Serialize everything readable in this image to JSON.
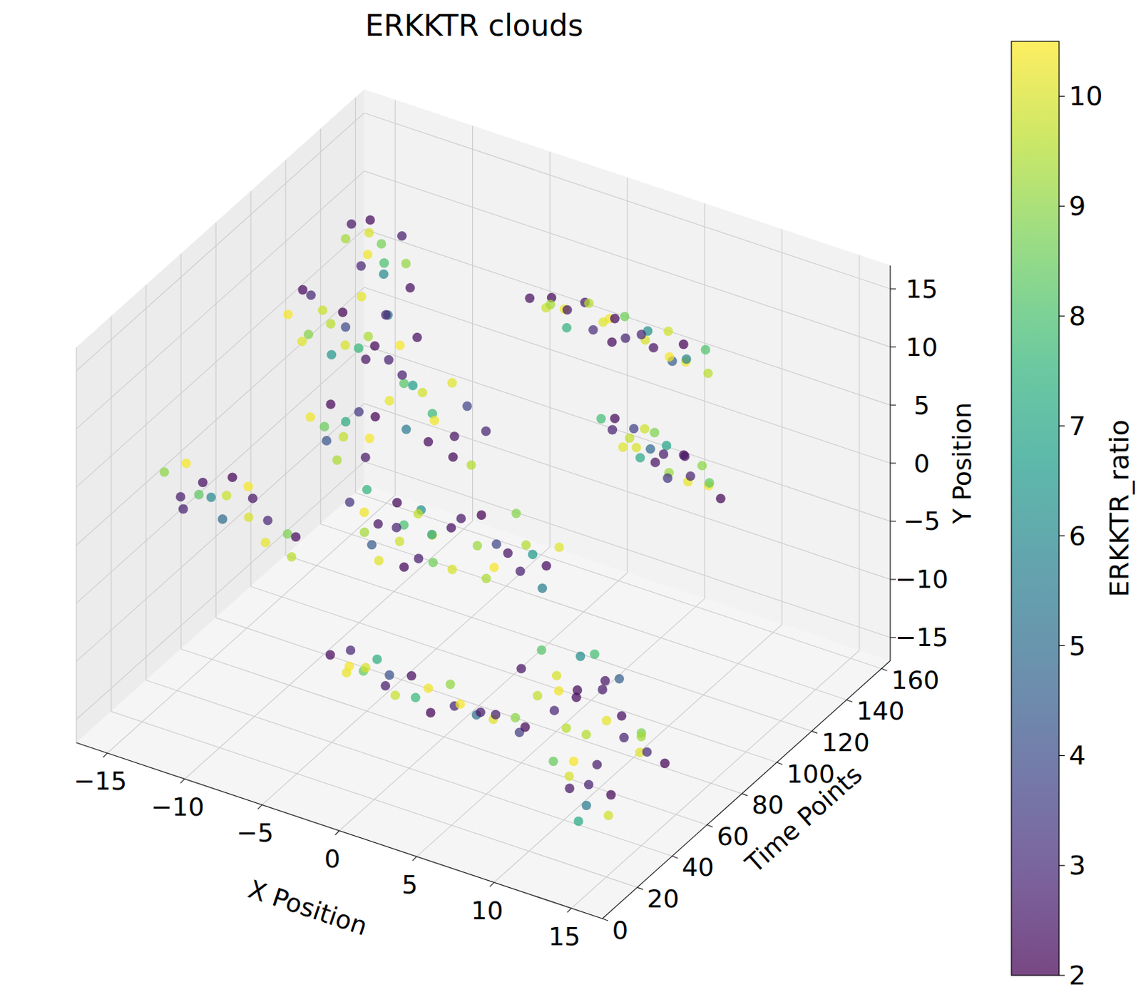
{
  "chart_data": {
    "type": "scatter3d",
    "title": "ERKKTR clouds",
    "x_label": "X Position",
    "y_label": "Time Points",
    "z_label": "Y Position",
    "grid": true,
    "xlim": [
      -17,
      17
    ],
    "ylim": [
      0,
      165
    ],
    "zlim": [
      -17,
      17
    ],
    "xticks": [
      {
        "value": -15,
        "label": "−15"
      },
      {
        "value": -10,
        "label": "−10"
      },
      {
        "value": -5,
        "label": "−5"
      },
      0,
      5,
      10,
      15
    ],
    "yticks": [
      0,
      20,
      40,
      60,
      80,
      100,
      120,
      140,
      160
    ],
    "zticks": [
      {
        "value": -15,
        "label": "−15"
      },
      {
        "value": -10,
        "label": "−10"
      },
      {
        "value": -5,
        "label": "−5"
      },
      0,
      5,
      10,
      15
    ],
    "x": [
      -1.0,
      -0.4,
      0.3,
      0.9,
      1.5,
      2.0,
      2.6,
      3.1,
      3.7,
      4.2,
      4.8,
      5.3,
      5.9,
      6.4,
      7.0,
      7.5,
      8.1,
      8.6,
      9.2,
      9.8,
      10.3,
      1.2,
      3.4,
      6.1,
      8.9,
      0.0,
      4.5,
      7.8,
      3.5,
      4.0,
      4.5,
      5.0,
      5.5,
      6.0,
      6.5,
      7.0,
      7.5,
      8.0,
      8.5,
      9.0,
      9.5,
      10.0,
      10.5,
      11.0,
      6.2,
      7.8,
      5.8,
      8.8,
      4.8,
      9.8,
      7.2,
      6.8,
      -15.5,
      -15.0,
      -14.4,
      -13.9,
      -13.3,
      -12.8,
      -12.3,
      -11.8,
      -11.2,
      -10.7,
      -10.2,
      -9.6,
      -9.1,
      -8.6,
      -8.0,
      -7.6,
      -12.0,
      -13.6,
      -10.0,
      -14.7,
      -11.5,
      -9.4,
      -12.0,
      -11.4,
      -10.8,
      -10.3,
      -9.8,
      -9.2,
      -8.7,
      -8.1,
      -7.6,
      -10.6,
      -9.4,
      -11.0,
      -11.8,
      -11.2,
      -10.6,
      -10.0,
      -9.4,
      -8.8,
      -8.2,
      -7.6,
      -10.3,
      -9.0,
      -11.0,
      -6.8,
      -6.2,
      -5.6,
      -5.0,
      -4.4,
      -3.8,
      -3.2,
      -2.6,
      -2.0,
      -1.4,
      -0.9,
      -4.0,
      -5.4,
      -2.8,
      -15.6,
      -15.0,
      -14.3,
      -13.7,
      -13.0,
      -12.4,
      -11.8,
      -11.2,
      -10.6,
      -10.0,
      -9.4,
      -8.8,
      -8.2,
      -7.6,
      -7.1,
      -12.8,
      -10.4,
      -14.6,
      -7.0,
      -6.5,
      -6.0,
      -5.5,
      -5.0,
      -4.5,
      -4.0,
      -3.5,
      -3.0,
      -2.5,
      -2.0,
      -1.5,
      -1.0,
      -0.6,
      -4.2,
      -5.8,
      -2.8,
      -3.6,
      -6.4,
      -1.8,
      0.2,
      0.8,
      1.4,
      2.0,
      2.6,
      3.2,
      3.8,
      4.4,
      5.0,
      5.6,
      6.2,
      3.0,
      1.6,
      4.6,
      -6.0,
      -5.4,
      -4.8,
      -4.2,
      -3.6,
      -3.0,
      -2.4,
      -1.8,
      -1.2,
      -0.6,
      0.0,
      0.6,
      1.2,
      1.8,
      2.4,
      3.0,
      3.6,
      4.2,
      4.8,
      5.4,
      6.0,
      6.6,
      -5.0,
      -3.2,
      8.6,
      9.2,
      9.8,
      10.4,
      11.0,
      11.6,
      12.2,
      12.8,
      13.4,
      14.0,
      14.6,
      15.2,
      15.8,
      12.0,
      10.8,
      13.8,
      11.4,
      13.0,
      14.0,
      14.8,
      15.6,
      16.3,
      15.0,
      11.8,
      12.4,
      13.0,
      13.6,
      14.2,
      14.8,
      15.3,
      13.2,
      12.6,
      14.4
    ],
    "y": [
      118,
      122,
      119,
      121,
      117,
      123,
      120,
      118,
      122,
      119,
      121,
      117,
      123,
      120,
      118,
      122,
      119,
      121,
      117,
      123,
      120,
      120,
      121,
      119,
      120,
      121,
      118,
      120,
      119,
      121,
      118,
      122,
      120,
      117,
      123,
      119,
      121,
      118,
      122,
      120,
      117,
      123,
      119,
      121,
      120,
      119,
      121,
      120,
      120,
      121,
      122,
      118,
      108,
      112,
      110,
      107,
      113,
      109,
      111,
      108,
      112,
      110,
      107,
      113,
      109,
      111,
      108,
      112,
      110,
      111,
      109,
      109,
      113,
      110,
      110,
      108,
      112,
      109,
      111,
      107,
      113,
      110,
      108,
      111,
      109,
      110,
      88,
      92,
      89,
      91,
      87,
      93,
      90,
      88,
      90,
      91,
      89,
      89,
      91,
      88,
      92,
      90,
      87,
      93,
      89,
      91,
      88,
      92,
      90,
      90,
      90,
      38,
      42,
      39,
      41,
      37,
      43,
      40,
      38,
      42,
      39,
      41,
      37,
      43,
      40,
      38,
      40,
      40,
      40,
      68,
      72,
      69,
      71,
      67,
      73,
      70,
      68,
      72,
      69,
      71,
      67,
      73,
      70,
      70,
      70,
      70,
      69,
      71,
      69,
      68,
      72,
      69,
      71,
      67,
      73,
      70,
      68,
      72,
      69,
      71,
      70,
      70,
      70,
      48,
      52,
      49,
      51,
      47,
      53,
      50,
      48,
      52,
      49,
      51,
      47,
      53,
      50,
      48,
      52,
      49,
      51,
      47,
      53,
      50,
      48,
      50,
      50,
      28,
      32,
      29,
      31,
      27,
      33,
      30,
      28,
      32,
      29,
      31,
      27,
      33,
      30,
      30,
      30,
      29,
      31,
      39,
      41,
      38,
      42,
      40,
      18,
      22,
      19,
      21,
      17,
      23,
      20,
      20,
      20,
      20
    ],
    "z": [
      12.5,
      11.4,
      13.0,
      12.0,
      11.2,
      12.8,
      13.4,
      11.6,
      12.3,
      10.9,
      13.1,
      12.0,
      11.3,
      12.7,
      11.8,
      12.9,
      11.0,
      12.4,
      11.7,
      12.2,
      10.8,
      12.2,
      12.0,
      12.4,
      11.4,
      12.0,
      13.2,
      11.1,
      4.0,
      3.0,
      4.6,
      2.6,
      3.9,
      2.9,
      3.6,
      1.8,
      3.2,
      1.5,
      2.7,
      0.9,
      2.0,
      0.6,
      1.6,
      0.2,
      4.2,
      0.8,
      1.4,
      3.0,
      2.0,
      2.5,
      2.2,
      3.0,
      6.0,
      7.8,
      4.5,
      8.5,
      5.5,
      3.6,
      7.2,
      5.0,
      8.9,
      4.0,
      6.6,
      7.9,
      4.8,
      6.0,
      3.4,
      7.0,
      6.2,
      6.8,
      5.6,
      3.9,
      4.2,
      8.4,
      13.8,
      15.6,
      12.7,
      16.3,
      14.2,
      12.4,
      15.1,
      13.4,
      11.8,
      14.8,
      13.0,
      11.9,
      1.5,
      -0.8,
      3.0,
      0.2,
      2.3,
      -1.3,
      1.0,
      3.4,
      -1.8,
      2.8,
      0.9,
      5.0,
      7.2,
      3.2,
      6.1,
      2.4,
      5.5,
      7.6,
      3.8,
      6.4,
      2.0,
      4.6,
      4.4,
      6.8,
      1.8,
      1.8,
      -0.6,
      3.0,
      0.3,
      2.2,
      -1.5,
      1.2,
      3.3,
      -0.4,
      1.9,
      -1.9,
      0.8,
      -0.9,
      -2.2,
      0.0,
      0.6,
      2.6,
      -1.2,
      -1.0,
      -3.9,
      0.4,
      -2.6,
      -5.0,
      -0.6,
      -3.3,
      -1.4,
      -4.6,
      0.2,
      -2.0,
      -3.6,
      -1.2,
      -4.2,
      -2.2,
      -4.4,
      -0.4,
      -5.2,
      -2.0,
      -1.6,
      0.8,
      -1.8,
      1.5,
      -3.0,
      -0.2,
      1.9,
      -2.4,
      0.4,
      -3.6,
      -1.0,
      0.6,
      -1.2,
      -4.0,
      -0.6,
      -11.0,
      -12.8,
      -10.2,
      -12.0,
      -10.9,
      -13.0,
      -11.4,
      -12.6,
      -11.2,
      -12.4,
      -11.6,
      -12.9,
      -11.0,
      -12.2,
      -11.5,
      -12.7,
      -11.8,
      -12.4,
      -11.2,
      -12.0,
      -12.6,
      -11.6,
      -11.8,
      -10.4,
      -3.0,
      -5.6,
      -1.0,
      -6.2,
      -2.4,
      -4.8,
      -0.6,
      -6.8,
      -3.2,
      -5.2,
      -1.6,
      -4.0,
      -6.0,
      -3.6,
      -4.2,
      -2.0,
      -7.0,
      -0.2,
      -8.0,
      -9.2,
      -8.4,
      -9.6,
      -7.6,
      -8.2,
      -10.8,
      -7.8,
      -11.6,
      -9.0,
      -12.2,
      -9.8,
      -13.0,
      -9.4,
      -7.6
    ],
    "color_values": [
      2.3,
      9.8,
      2.1,
      10.2,
      7.4,
      2.6,
      9.5,
      3.1,
      10.4,
      2.2,
      8.6,
      2.8,
      10.0,
      6.2,
      2.4,
      9.9,
      4.5,
      2.0,
      10.3,
      8.1,
      9.6,
      2.5,
      10.1,
      2.9,
      5.8,
      9.3,
      2.2,
      10.4,
      7.9,
      2.7,
      2.1,
      9.7,
      3.6,
      10.0,
      8.8,
      2.4,
      6.9,
      9.2,
      2.3,
      10.2,
      2.8,
      10.3,
      8.4,
      2.1,
      9.9,
      3.3,
      7.1,
      2.5,
      10.1,
      9.0,
      2.6,
      4.8,
      10.4,
      2.2,
      8.9,
      2.9,
      9.6,
      6.5,
      2.0,
      10.0,
      10.2,
      2.4,
      9.4,
      5.2,
      2.7,
      10.4,
      8.2,
      2.3,
      3.9,
      9.8,
      2.1,
      10.1,
      7.6,
      2.8,
      9.3,
      2.5,
      10.3,
      2.2,
      8.7,
      6.0,
      2.6,
      9.1,
      2.3,
      10.0,
      8.0,
      2.9,
      10.3,
      4.2,
      2.1,
      9.7,
      7.2,
      2.5,
      10.4,
      2.0,
      9.4,
      3.4,
      8.5,
      10.2,
      2.7,
      5.5,
      9.9,
      2.2,
      7.8,
      10.1,
      2.4,
      3.7,
      9.5,
      2.8,
      10.3,
      6.7,
      2.1,
      9.0,
      2.6,
      10.4,
      8.3,
      2.3,
      4.9,
      9.8,
      2.0,
      10.0,
      2.5,
      10.2,
      2.9,
      8.8,
      9.6,
      2.2,
      5.9,
      10.4,
      2.7,
      3.2,
      9.3,
      7.5,
      2.4,
      10.1,
      2.1,
      9.9,
      8.0,
      2.6,
      6.3,
      10.3,
      8.6,
      2.3,
      10.0,
      2.8,
      4.4,
      9.7,
      2.1,
      10.3,
      7.0,
      2.5,
      9.2,
      2.0,
      10.4,
      3.8,
      8.9,
      2.7,
      9.5,
      5.6,
      2.2,
      10.1,
      2.4,
      9.4,
      6.6,
      2.2,
      10.2,
      2.9,
      8.4,
      10.0,
      2.6,
      4.1,
      9.8,
      2.3,
      7.7,
      10.3,
      2.0,
      9.1,
      2.8,
      10.4,
      5.1,
      2.5,
      10.1,
      2.7,
      9.0,
      3.5,
      2.1,
      10.4,
      7.3,
      2.4,
      9.7,
      8.2,
      2.9,
      10.0,
      2.2,
      6.1,
      9.5,
      2.6,
      10.2,
      4.6,
      2.3,
      8.8,
      2.2,
      10.3,
      2.5,
      9.6,
      7.9,
      2.8,
      10.1,
      3.0,
      2.0,
      9.3,
      8.5,
      2.4,
      10.4,
      5.4,
      2.7,
      9.9,
      2.1,
      7.1,
      10.0,
      2.6
    ],
    "colorbar": {
      "label": "ERKKTR_ratio",
      "range": [
        2,
        10.5
      ],
      "ticks": [
        2,
        3,
        4,
        5,
        6,
        7,
        8,
        9,
        10
      ]
    }
  }
}
